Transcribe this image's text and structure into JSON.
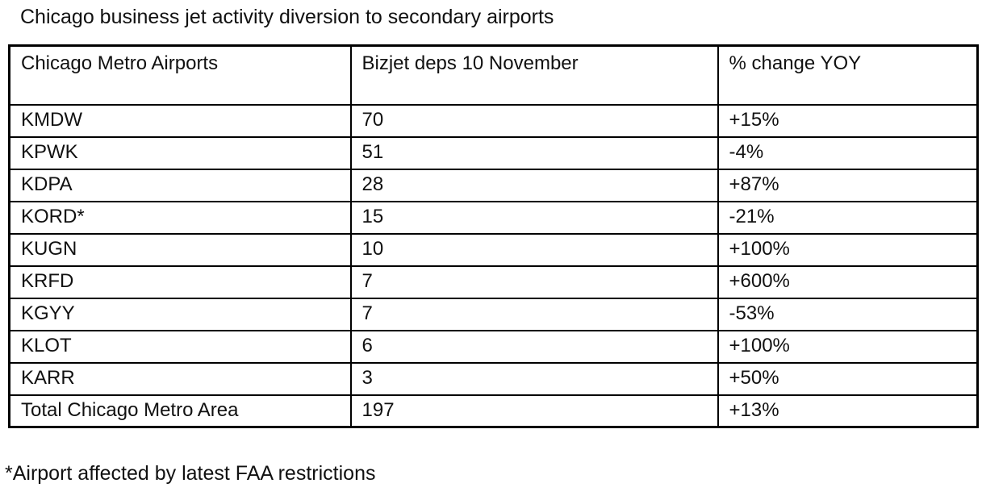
{
  "chart_data": {
    "type": "table",
    "title": "Chicago business jet activity diversion to secondary airports",
    "columns": [
      "Chicago Metro Airports",
      "Bizjet deps 10 November",
      "% change YOY"
    ],
    "rows": [
      [
        "KMDW",
        70,
        "+15%"
      ],
      [
        "KPWK",
        51,
        "-4%"
      ],
      [
        "KDPA",
        28,
        "+87%"
      ],
      [
        "KORD*",
        15,
        "-21%"
      ],
      [
        "KUGN",
        10,
        "+100%"
      ],
      [
        "KRFD",
        7,
        "+600%"
      ],
      [
        "KGYY",
        7,
        "-53%"
      ],
      [
        "KLOT",
        6,
        "+100%"
      ],
      [
        "KARR",
        3,
        "+50%"
      ],
      [
        "Total Chicago Metro Area",
        197,
        "+13%"
      ]
    ],
    "footnote": "*Airport affected by latest FAA restrictions",
    "layout": {
      "grid": "on",
      "border_color": "#000000",
      "text_color": "#111111",
      "background_color": "#ffffff"
    }
  }
}
